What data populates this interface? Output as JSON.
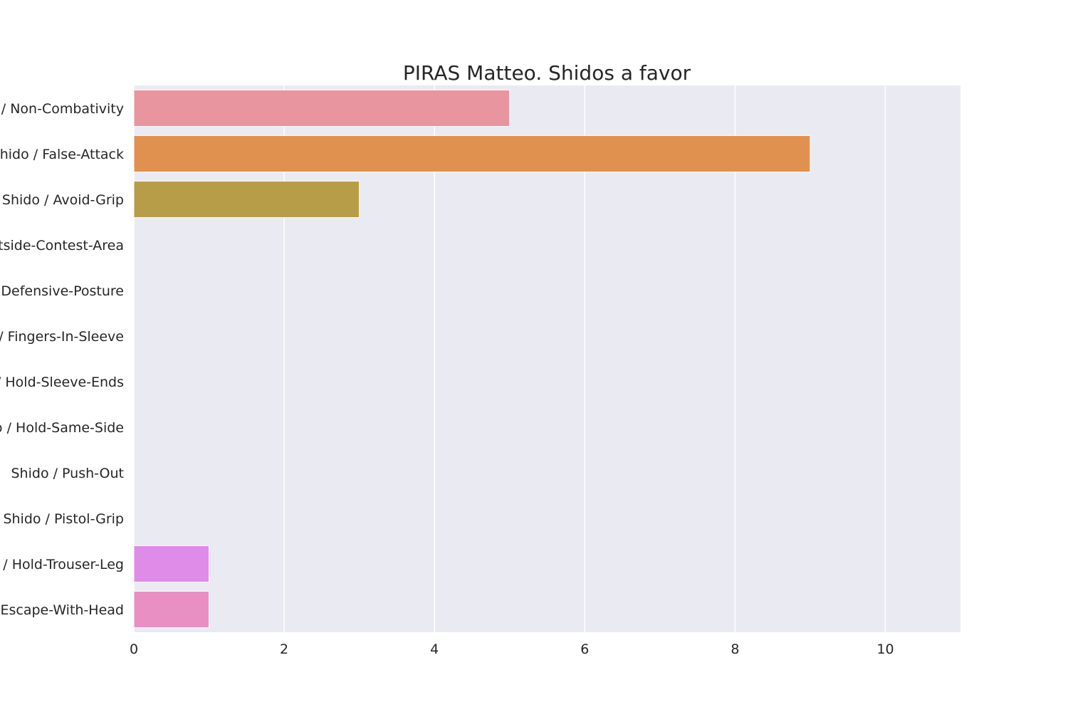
{
  "chart_data": {
    "type": "bar",
    "orientation": "horizontal",
    "title": "PIRAS Matteo. Shidos a favor",
    "xlabel": "",
    "ylabel": "",
    "categories": [
      "Shido / Non-Combativity",
      "Shido / False-Attack",
      "Shido / Avoid-Grip",
      "Shido / Outside-Contest-Area",
      "Shido / Defensive-Posture",
      "Shido / Fingers-In-Sleeve",
      "Shido / Hold-Sleeve-Ends",
      "Shido / Hold-Same-Side",
      "Shido / Push-Out",
      "Shido / Pistol-Grip",
      "Shido / Hold-Trouser-Leg",
      "Shido / Escape-With-Head"
    ],
    "values": [
      5,
      9,
      3,
      0,
      0,
      0,
      0,
      0,
      0,
      0,
      1,
      1
    ],
    "colors": [
      "#e8959f",
      "#e09150",
      "#b89d48",
      "#9cab43",
      "#53b849",
      "#55b68f",
      "#57b3ad",
      "#5ab2c6",
      "#60a8e0",
      "#a89ff2",
      "#df8be8",
      "#e88fc4"
    ],
    "xlim": [
      0,
      11
    ],
    "xticks": [
      0,
      2,
      4,
      6,
      8,
      10
    ],
    "grid": true,
    "legend": "none",
    "background": "#eaeaf2"
  }
}
